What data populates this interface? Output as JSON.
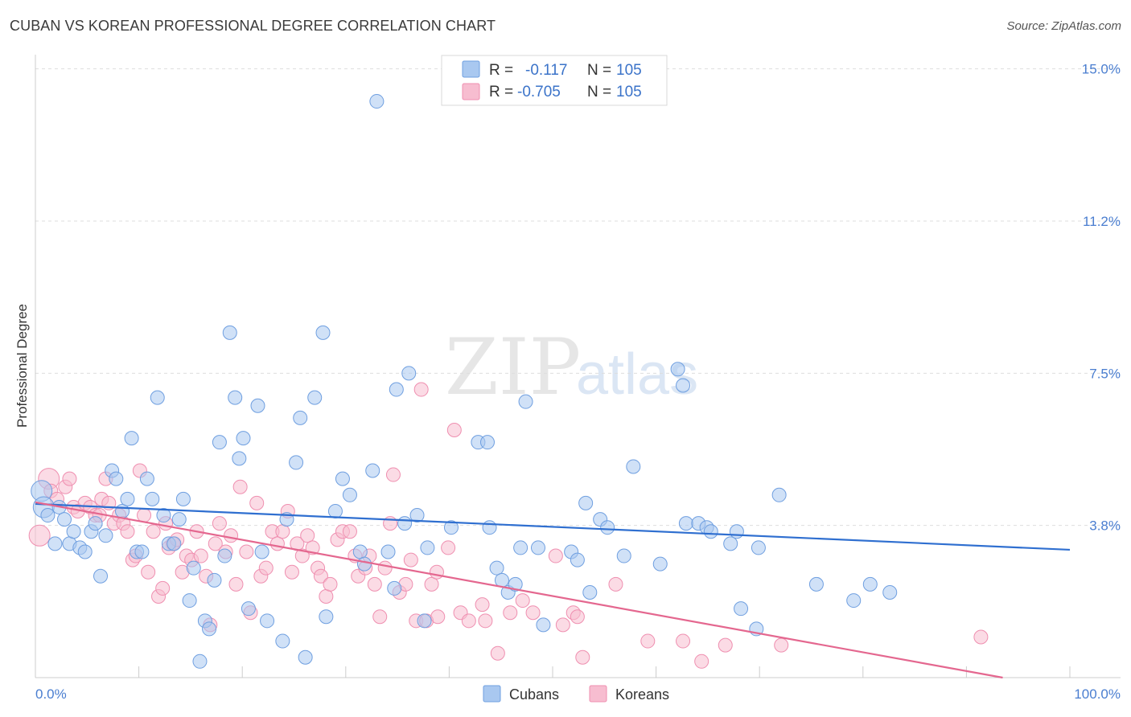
{
  "title": "CUBAN VS KOREAN PROFESSIONAL DEGREE CORRELATION CHART",
  "source": "Source: ZipAtlas.com",
  "watermark": {
    "zip": "ZIP",
    "atlas": "atlas"
  },
  "colors": {
    "cubans_fill": "#a9c8f0",
    "cubans_stroke": "#6f9fe0",
    "cubans_line": "#2f6fd0",
    "koreans_fill": "#f7bdd0",
    "koreans_stroke": "#ef8fb0",
    "koreans_line": "#e4678f",
    "grid": "#dddddd",
    "axis_text": "#4a7ed0"
  },
  "legend": {
    "rows": [
      {
        "r_label": "R =",
        "r_value": "-0.117",
        "n_label": "N =",
        "n_value": "105"
      },
      {
        "r_label": "R =",
        "r_value": "-0.705",
        "n_label": "N =",
        "n_value": "105"
      }
    ]
  },
  "bottom_legend": {
    "cubans": "Cubans",
    "koreans": "Koreans"
  },
  "chart_data": {
    "type": "scatter",
    "title": "CUBAN VS KOREAN PROFESSIONAL DEGREE CORRELATION CHART",
    "xlabel": "",
    "ylabel": "Professional Degree",
    "xlim": [
      0,
      100
    ],
    "ylim": [
      0,
      15.35
    ],
    "x_tick_labels": [
      {
        "value": 0,
        "label": "0.0%"
      },
      {
        "value": 100,
        "label": "100.0%"
      }
    ],
    "y_ticks": [
      {
        "value": 3.75,
        "label": "3.8%"
      },
      {
        "value": 7.5,
        "label": "7.5%"
      },
      {
        "value": 11.25,
        "label": "11.2%"
      },
      {
        "value": 15.0,
        "label": "15.0%"
      }
    ],
    "series": [
      {
        "name": "Cubans",
        "r": -0.117,
        "n": 105,
        "trend": {
          "x": [
            0,
            100
          ],
          "y": [
            4.28,
            3.15
          ]
        },
        "points": [
          {
            "x": 0.6,
            "y": 4.6,
            "big": 1
          },
          {
            "x": 0.8,
            "y": 4.2,
            "big": 1
          },
          {
            "x": 1.2,
            "y": 4.0
          },
          {
            "x": 1.9,
            "y": 3.3
          },
          {
            "x": 2.3,
            "y": 4.2
          },
          {
            "x": 2.8,
            "y": 3.9
          },
          {
            "x": 3.3,
            "y": 3.3
          },
          {
            "x": 3.7,
            "y": 3.6
          },
          {
            "x": 4.3,
            "y": 3.2
          },
          {
            "x": 4.8,
            "y": 3.1
          },
          {
            "x": 5.4,
            "y": 3.6
          },
          {
            "x": 5.8,
            "y": 3.8
          },
          {
            "x": 6.3,
            "y": 2.5
          },
          {
            "x": 6.8,
            "y": 3.5
          },
          {
            "x": 7.4,
            "y": 5.1
          },
          {
            "x": 7.8,
            "y": 4.9
          },
          {
            "x": 8.4,
            "y": 4.1
          },
          {
            "x": 8.9,
            "y": 4.4
          },
          {
            "x": 9.3,
            "y": 5.9
          },
          {
            "x": 9.8,
            "y": 3.1
          },
          {
            "x": 10.3,
            "y": 3.1
          },
          {
            "x": 10.8,
            "y": 4.9
          },
          {
            "x": 11.3,
            "y": 4.4
          },
          {
            "x": 11.8,
            "y": 6.9
          },
          {
            "x": 12.4,
            "y": 4.0
          },
          {
            "x": 12.9,
            "y": 3.3
          },
          {
            "x": 13.4,
            "y": 3.3
          },
          {
            "x": 13.9,
            "y": 3.9
          },
          {
            "x": 14.3,
            "y": 4.4
          },
          {
            "x": 14.9,
            "y": 1.9
          },
          {
            "x": 15.3,
            "y": 2.7
          },
          {
            "x": 15.9,
            "y": 0.4
          },
          {
            "x": 16.4,
            "y": 1.4
          },
          {
            "x": 16.8,
            "y": 1.2
          },
          {
            "x": 17.3,
            "y": 2.4
          },
          {
            "x": 17.8,
            "y": 5.8
          },
          {
            "x": 18.3,
            "y": 3.0
          },
          {
            "x": 18.8,
            "y": 8.5
          },
          {
            "x": 19.3,
            "y": 6.9
          },
          {
            "x": 19.7,
            "y": 5.4
          },
          {
            "x": 20.1,
            "y": 5.9
          },
          {
            "x": 20.6,
            "y": 1.7
          },
          {
            "x": 21.5,
            "y": 6.7
          },
          {
            "x": 21.9,
            "y": 3.1
          },
          {
            "x": 22.4,
            "y": 1.4
          },
          {
            "x": 23.9,
            "y": 0.9
          },
          {
            "x": 24.3,
            "y": 3.9
          },
          {
            "x": 25.2,
            "y": 5.3
          },
          {
            "x": 25.6,
            "y": 6.4
          },
          {
            "x": 26.1,
            "y": 0.5
          },
          {
            "x": 27.0,
            "y": 6.9
          },
          {
            "x": 27.8,
            "y": 8.5
          },
          {
            "x": 28.1,
            "y": 1.5
          },
          {
            "x": 29.0,
            "y": 4.1
          },
          {
            "x": 29.7,
            "y": 4.9
          },
          {
            "x": 30.4,
            "y": 4.5
          },
          {
            "x": 31.4,
            "y": 3.1
          },
          {
            "x": 31.8,
            "y": 2.8
          },
          {
            "x": 32.6,
            "y": 5.1
          },
          {
            "x": 33.0,
            "y": 14.2
          },
          {
            "x": 34.1,
            "y": 3.1
          },
          {
            "x": 34.7,
            "y": 2.2
          },
          {
            "x": 34.9,
            "y": 7.1
          },
          {
            "x": 35.7,
            "y": 3.8
          },
          {
            "x": 36.1,
            "y": 7.5
          },
          {
            "x": 36.9,
            "y": 4.0
          },
          {
            "x": 37.6,
            "y": 1.4
          },
          {
            "x": 37.9,
            "y": 3.2
          },
          {
            "x": 40.2,
            "y": 3.7
          },
          {
            "x": 42.8,
            "y": 5.8
          },
          {
            "x": 43.7,
            "y": 5.8
          },
          {
            "x": 43.9,
            "y": 3.7
          },
          {
            "x": 44.6,
            "y": 2.7
          },
          {
            "x": 45.1,
            "y": 2.4
          },
          {
            "x": 45.7,
            "y": 2.1
          },
          {
            "x": 46.4,
            "y": 2.3
          },
          {
            "x": 46.9,
            "y": 3.2
          },
          {
            "x": 47.4,
            "y": 6.8
          },
          {
            "x": 48.6,
            "y": 3.2
          },
          {
            "x": 49.1,
            "y": 1.3
          },
          {
            "x": 51.8,
            "y": 3.1
          },
          {
            "x": 52.4,
            "y": 2.9
          },
          {
            "x": 53.2,
            "y": 4.3
          },
          {
            "x": 53.6,
            "y": 2.1
          },
          {
            "x": 54.6,
            "y": 3.9
          },
          {
            "x": 55.3,
            "y": 3.7
          },
          {
            "x": 56.9,
            "y": 3.0
          },
          {
            "x": 57.8,
            "y": 5.2
          },
          {
            "x": 60.4,
            "y": 2.8
          },
          {
            "x": 62.1,
            "y": 7.6
          },
          {
            "x": 62.6,
            "y": 7.2
          },
          {
            "x": 62.9,
            "y": 3.8
          },
          {
            "x": 64.1,
            "y": 3.8
          },
          {
            "x": 64.9,
            "y": 3.7
          },
          {
            "x": 65.3,
            "y": 3.6
          },
          {
            "x": 67.2,
            "y": 3.3
          },
          {
            "x": 67.8,
            "y": 3.6
          },
          {
            "x": 68.2,
            "y": 1.7
          },
          {
            "x": 69.7,
            "y": 1.2
          },
          {
            "x": 69.9,
            "y": 3.2
          },
          {
            "x": 71.9,
            "y": 4.5
          },
          {
            "x": 75.5,
            "y": 2.3
          },
          {
            "x": 79.1,
            "y": 1.9
          },
          {
            "x": 80.7,
            "y": 2.3
          },
          {
            "x": 82.6,
            "y": 2.1
          }
        ]
      },
      {
        "name": "Koreans",
        "r": -0.705,
        "n": 105,
        "trend": {
          "x": [
            0,
            100
          ],
          "y": [
            4.32,
            -0.3
          ]
        },
        "points": [
          {
            "x": 0.4,
            "y": 3.5,
            "big": 1
          },
          {
            "x": 1.3,
            "y": 4.9,
            "big": 1
          },
          {
            "x": 1.5,
            "y": 4.6
          },
          {
            "x": 2.1,
            "y": 4.4
          },
          {
            "x": 2.9,
            "y": 4.7
          },
          {
            "x": 3.3,
            "y": 4.9
          },
          {
            "x": 3.7,
            "y": 4.2
          },
          {
            "x": 4.1,
            "y": 4.1
          },
          {
            "x": 4.8,
            "y": 4.3
          },
          {
            "x": 5.3,
            "y": 4.2
          },
          {
            "x": 5.8,
            "y": 4.0
          },
          {
            "x": 6.2,
            "y": 4.0
          },
          {
            "x": 6.4,
            "y": 4.4
          },
          {
            "x": 6.8,
            "y": 4.9
          },
          {
            "x": 7.1,
            "y": 4.3
          },
          {
            "x": 7.6,
            "y": 3.8
          },
          {
            "x": 8.1,
            "y": 4.0
          },
          {
            "x": 8.5,
            "y": 3.8
          },
          {
            "x": 8.9,
            "y": 3.6
          },
          {
            "x": 9.4,
            "y": 2.9
          },
          {
            "x": 9.7,
            "y": 3.0
          },
          {
            "x": 10.1,
            "y": 5.1
          },
          {
            "x": 10.5,
            "y": 4.0
          },
          {
            "x": 10.9,
            "y": 2.6
          },
          {
            "x": 11.4,
            "y": 3.6
          },
          {
            "x": 11.9,
            "y": 2.0
          },
          {
            "x": 12.3,
            "y": 2.2
          },
          {
            "x": 12.6,
            "y": 3.8
          },
          {
            "x": 12.9,
            "y": 3.2
          },
          {
            "x": 13.3,
            "y": 3.3
          },
          {
            "x": 13.7,
            "y": 3.4
          },
          {
            "x": 14.2,
            "y": 2.6
          },
          {
            "x": 14.6,
            "y": 3.0
          },
          {
            "x": 15.1,
            "y": 2.9
          },
          {
            "x": 15.6,
            "y": 3.6
          },
          {
            "x": 16.0,
            "y": 3.0
          },
          {
            "x": 16.5,
            "y": 2.5
          },
          {
            "x": 16.9,
            "y": 1.3
          },
          {
            "x": 17.4,
            "y": 3.3
          },
          {
            "x": 17.8,
            "y": 3.8
          },
          {
            "x": 18.4,
            "y": 3.1
          },
          {
            "x": 18.9,
            "y": 3.5
          },
          {
            "x": 19.4,
            "y": 2.3
          },
          {
            "x": 19.8,
            "y": 4.7
          },
          {
            "x": 20.4,
            "y": 3.1
          },
          {
            "x": 20.8,
            "y": 1.6
          },
          {
            "x": 21.4,
            "y": 4.3
          },
          {
            "x": 21.8,
            "y": 2.5
          },
          {
            "x": 22.3,
            "y": 2.7
          },
          {
            "x": 22.9,
            "y": 3.6
          },
          {
            "x": 23.4,
            "y": 3.3
          },
          {
            "x": 23.9,
            "y": 3.6
          },
          {
            "x": 24.4,
            "y": 4.1
          },
          {
            "x": 24.8,
            "y": 2.6
          },
          {
            "x": 25.3,
            "y": 3.3
          },
          {
            "x": 25.8,
            "y": 3.0
          },
          {
            "x": 26.3,
            "y": 3.5
          },
          {
            "x": 26.8,
            "y": 3.2
          },
          {
            "x": 27.3,
            "y": 2.7
          },
          {
            "x": 27.6,
            "y": 2.5
          },
          {
            "x": 28.1,
            "y": 2.0
          },
          {
            "x": 28.5,
            "y": 2.3
          },
          {
            "x": 29.2,
            "y": 3.4
          },
          {
            "x": 29.7,
            "y": 3.6
          },
          {
            "x": 30.4,
            "y": 3.6
          },
          {
            "x": 30.9,
            "y": 3.0
          },
          {
            "x": 31.2,
            "y": 2.5
          },
          {
            "x": 31.9,
            "y": 2.7
          },
          {
            "x": 32.3,
            "y": 3.0
          },
          {
            "x": 32.8,
            "y": 2.3
          },
          {
            "x": 33.3,
            "y": 1.5
          },
          {
            "x": 33.8,
            "y": 2.7
          },
          {
            "x": 34.3,
            "y": 3.8
          },
          {
            "x": 34.6,
            "y": 5.0
          },
          {
            "x": 35.2,
            "y": 2.1
          },
          {
            "x": 35.8,
            "y": 2.3
          },
          {
            "x": 36.3,
            "y": 2.9
          },
          {
            "x": 36.8,
            "y": 1.4
          },
          {
            "x": 37.3,
            "y": 7.1
          },
          {
            "x": 37.8,
            "y": 1.4
          },
          {
            "x": 38.3,
            "y": 2.3
          },
          {
            "x": 38.8,
            "y": 2.6
          },
          {
            "x": 38.9,
            "y": 1.5
          },
          {
            "x": 39.9,
            "y": 3.2
          },
          {
            "x": 40.5,
            "y": 6.1
          },
          {
            "x": 41.1,
            "y": 1.6
          },
          {
            "x": 41.9,
            "y": 1.4
          },
          {
            "x": 43.2,
            "y": 1.8
          },
          {
            "x": 43.5,
            "y": 1.4
          },
          {
            "x": 44.7,
            "y": 0.6
          },
          {
            "x": 45.9,
            "y": 1.6
          },
          {
            "x": 47.1,
            "y": 1.9
          },
          {
            "x": 48.1,
            "y": 1.6
          },
          {
            "x": 50.3,
            "y": 3.0
          },
          {
            "x": 51.0,
            "y": 1.3
          },
          {
            "x": 52.0,
            "y": 1.6
          },
          {
            "x": 52.4,
            "y": 1.5
          },
          {
            "x": 56.1,
            "y": 2.3
          },
          {
            "x": 59.2,
            "y": 0.9
          },
          {
            "x": 62.6,
            "y": 0.9
          },
          {
            "x": 64.4,
            "y": 0.4
          },
          {
            "x": 66.7,
            "y": 0.8
          },
          {
            "x": 72.1,
            "y": 0.8
          },
          {
            "x": 91.4,
            "y": 1.0
          },
          {
            "x": 52.9,
            "y": 0.5
          }
        ]
      }
    ]
  }
}
